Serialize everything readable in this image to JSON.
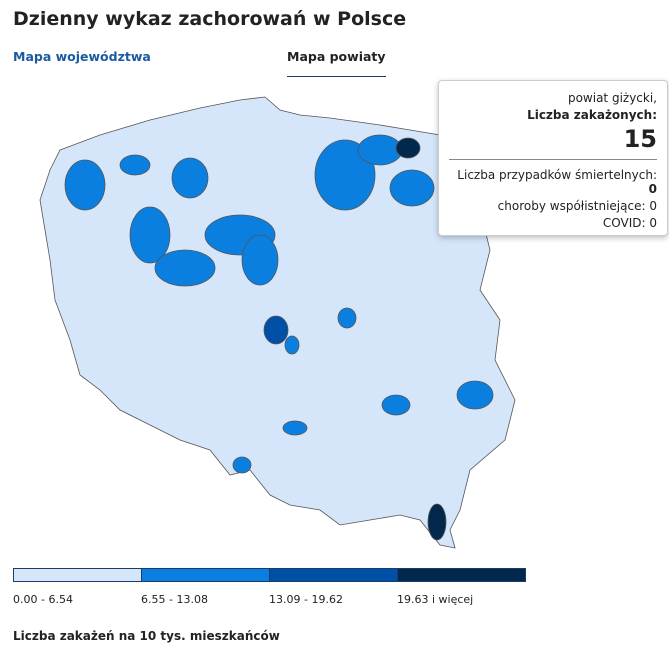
{
  "header": {
    "title": "Dzienny wykaz zachorowań w Polsce"
  },
  "tabs": [
    {
      "label": "Mapa województwa"
    },
    {
      "label": "Mapa powiaty"
    }
  ],
  "tooltip": {
    "region": "powiat giżycki,",
    "cases_label": "Liczba zakażonych:",
    "cases": 15,
    "deaths_label": "Liczba przypadków śmiertelnych:",
    "deaths": 0,
    "comorbid_label": "choroby współistniejące:",
    "comorbid": 0,
    "covid_label": "COVID:",
    "covid": 0
  },
  "legend": {
    "items": [
      {
        "label": "0.00 - 6.54",
        "color": "#d6e6fa"
      },
      {
        "label": "6.55 - 13.08",
        "color": "#0a7fe0"
      },
      {
        "label": "13.09 - 19.62",
        "color": "#0050a8"
      },
      {
        "label": "19.63 i więcej",
        "color": "#03284d"
      }
    ],
    "caption": "Liczba zakażeń na 10 tys. mieszkańców"
  }
}
